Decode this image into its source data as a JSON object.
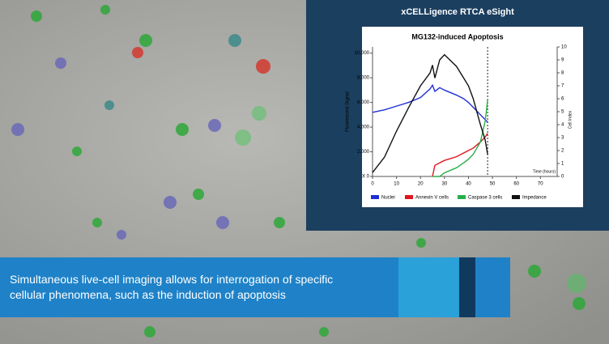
{
  "header": {
    "title": "xCELLigence RTCA eSight"
  },
  "caption": "Simultaneous live-cell imaging allows for interrogation of specific cellular phenomena, such as the induction of apoptosis",
  "chart_data": {
    "type": "line",
    "title": "MG132-induced Apoptosis",
    "x_label": "Time (hours)",
    "y_label": "Fluorescent Signal",
    "y2_label": "Cell Index",
    "x": [
      0,
      5,
      10,
      15,
      20,
      24,
      25,
      26,
      28,
      30,
      35,
      38,
      40,
      42,
      45,
      47,
      48
    ],
    "series": [
      {
        "name": "Nuclei",
        "color": "#1f2fd6",
        "values": [
          5200,
          5400,
          5700,
          6000,
          6400,
          7100,
          7400,
          6900,
          7200,
          7000,
          6600,
          6300,
          6000,
          5600,
          5000,
          4600,
          4400
        ]
      },
      {
        "name": "Annexin V cells",
        "color": "#e0151d",
        "values": [
          null,
          null,
          null,
          null,
          null,
          null,
          0,
          900,
          1100,
          1300,
          1600,
          1900,
          2100,
          2300,
          2800,
          3200,
          3500
        ]
      },
      {
        "name": "Caspase 3 cells",
        "color": "#27b04a",
        "values": [
          null,
          null,
          null,
          null,
          null,
          null,
          0,
          0,
          0,
          300,
          700,
          1100,
          1400,
          1800,
          2800,
          4500,
          6200
        ]
      },
      {
        "name": "Impedance",
        "color": "#111111",
        "axis": "y2",
        "values": [
          0.3,
          1.5,
          3.5,
          5.3,
          7,
          8,
          8.6,
          7.6,
          9,
          9.4,
          8.5,
          7.6,
          7,
          6,
          4,
          2.8,
          1.7
        ]
      }
    ],
    "vline_x": 48,
    "xlim": [
      0,
      77
    ],
    "xticks": [
      0,
      10,
      20,
      30,
      40,
      50,
      60,
      70
    ],
    "ylim": [
      0,
      10500
    ],
    "yticks": [
      {
        "value": 0,
        "label": "X 0"
      },
      {
        "value": 2000,
        "label": "2,000"
      },
      {
        "value": 4000,
        "label": "4,000"
      },
      {
        "value": 6000,
        "label": "6,000"
      },
      {
        "value": 8000,
        "label": "8,000"
      },
      {
        "value": 10000,
        "label": "10,000"
      }
    ],
    "y2lim": [
      0,
      10
    ],
    "y2ticks": [
      0,
      1,
      2,
      3,
      4,
      5,
      6,
      7,
      8,
      9,
      10
    ]
  }
}
